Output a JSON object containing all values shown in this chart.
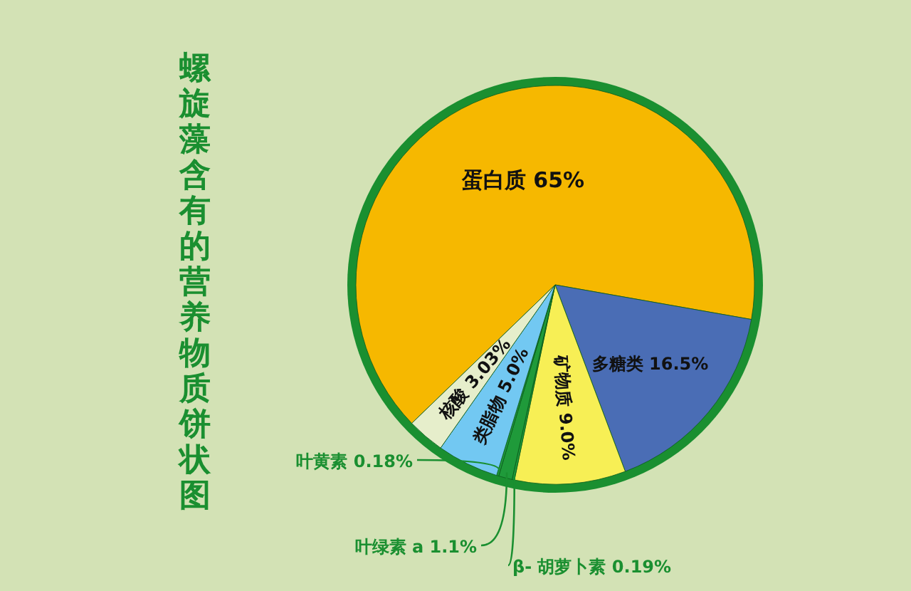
{
  "chart_data": {
    "type": "pie",
    "title": "螺旋藻含有的营养物质饼状图",
    "categories": [
      "蛋白质",
      "多糖类",
      "矿物质",
      "β- 胡萝卜素",
      "叶绿素 a",
      "叶黄素",
      "类脂物",
      "核酸"
    ],
    "values": [
      65,
      16.5,
      9.0,
      0.19,
      1.1,
      0.18,
      5.0,
      3.03
    ],
    "value_labels": [
      "65%",
      "16.5%",
      "9.0%",
      "0.19%",
      "1.1%",
      "0.18%",
      "5.0%",
      "3.03%"
    ],
    "colors": [
      "#f6b800",
      "#4a6db5",
      "#f7ef55",
      "#1f9a3a",
      "#1f9a3a",
      "#1f9a3a",
      "#72c8f2",
      "#e6eecb"
    ]
  }
}
